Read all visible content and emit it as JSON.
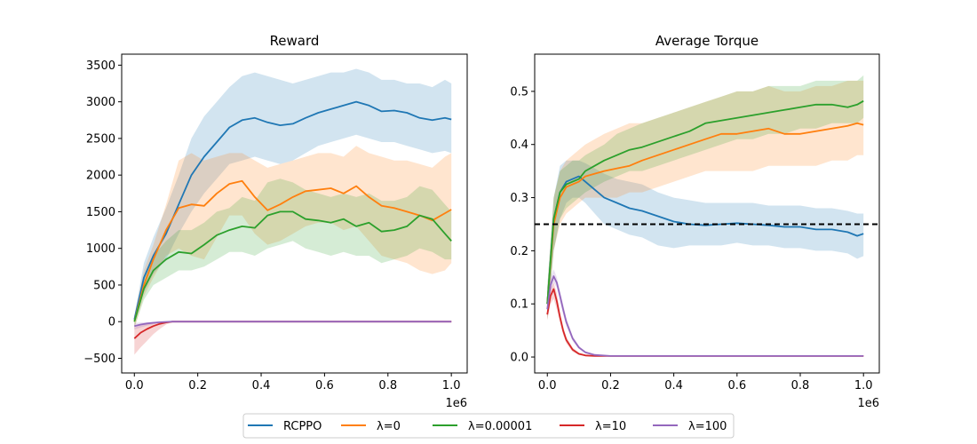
{
  "chart_data": [
    {
      "type": "line",
      "title": "Reward",
      "xlabel": "",
      "ylabel": "",
      "x_scale_label": "1e6",
      "xlim": [
        -0.04,
        1.05
      ],
      "ylim": [
        -700,
        3650
      ],
      "xticks": [
        0,
        0.2,
        0.4,
        0.6,
        0.8,
        1.0
      ],
      "xtick_labels": [
        "0.0",
        "0.2",
        "0.4",
        "0.6",
        "0.8",
        "1.0"
      ],
      "yticks": [
        -500,
        0,
        500,
        1000,
        1500,
        2000,
        2500,
        3000,
        3500
      ],
      "ytick_labels": [
        "−500",
        "0",
        "500",
        "1000",
        "1500",
        "2000",
        "2500",
        "3000",
        "3500"
      ],
      "grid": false,
      "series": [
        {
          "name": "RCPPO",
          "x": [
            0,
            0.03,
            0.06,
            0.1,
            0.14,
            0.18,
            0.22,
            0.26,
            0.3,
            0.34,
            0.38,
            0.42,
            0.46,
            0.5,
            0.54,
            0.58,
            0.62,
            0.66,
            0.7,
            0.74,
            0.78,
            0.82,
            0.86,
            0.9,
            0.94,
            0.98,
            1.0
          ],
          "values": [
            30,
            600,
            900,
            1200,
            1600,
            2000,
            2250,
            2450,
            2650,
            2750,
            2780,
            2720,
            2680,
            2700,
            2780,
            2850,
            2900,
            2950,
            3000,
            2950,
            2870,
            2880,
            2850,
            2780,
            2750,
            2780,
            2760
          ],
          "lower": [
            0,
            400,
            650,
            850,
            1200,
            1500,
            1750,
            1950,
            2150,
            2200,
            2250,
            2200,
            2150,
            2200,
            2300,
            2400,
            2450,
            2500,
            2550,
            2500,
            2450,
            2450,
            2400,
            2350,
            2300,
            2330,
            2300
          ],
          "upper": [
            80,
            800,
            1150,
            1550,
            2000,
            2500,
            2800,
            3000,
            3200,
            3350,
            3400,
            3350,
            3300,
            3250,
            3300,
            3350,
            3400,
            3400,
            3450,
            3400,
            3300,
            3300,
            3250,
            3250,
            3200,
            3300,
            3250
          ]
        },
        {
          "name": "λ=0",
          "x": [
            0,
            0.03,
            0.06,
            0.1,
            0.14,
            0.18,
            0.22,
            0.26,
            0.3,
            0.34,
            0.38,
            0.42,
            0.46,
            0.5,
            0.54,
            0.58,
            0.62,
            0.66,
            0.7,
            0.74,
            0.78,
            0.82,
            0.86,
            0.9,
            0.94,
            0.98,
            1.0
          ],
          "values": [
            0,
            500,
            850,
            1250,
            1550,
            1600,
            1580,
            1750,
            1880,
            1920,
            1700,
            1520,
            1600,
            1700,
            1780,
            1800,
            1820,
            1750,
            1850,
            1700,
            1580,
            1550,
            1500,
            1450,
            1380,
            1480,
            1530
          ],
          "lower": [
            -100,
            350,
            600,
            900,
            1000,
            900,
            850,
            1150,
            1450,
            1450,
            1200,
            1050,
            1100,
            1200,
            1300,
            1350,
            1350,
            1250,
            1300,
            1100,
            900,
            850,
            800,
            700,
            650,
            700,
            800
          ],
          "upper": [
            80,
            700,
            1050,
            1600,
            2200,
            2300,
            2200,
            2250,
            2300,
            2300,
            2200,
            2100,
            2150,
            2200,
            2250,
            2300,
            2300,
            2250,
            2400,
            2300,
            2250,
            2200,
            2200,
            2150,
            2100,
            2250,
            2300
          ]
        },
        {
          "name": "λ=0.00001",
          "x": [
            0,
            0.03,
            0.06,
            0.1,
            0.14,
            0.18,
            0.22,
            0.26,
            0.3,
            0.34,
            0.38,
            0.42,
            0.46,
            0.5,
            0.54,
            0.58,
            0.62,
            0.66,
            0.7,
            0.74,
            0.78,
            0.82,
            0.86,
            0.9,
            0.94,
            0.98,
            1.0
          ],
          "values": [
            0,
            450,
            700,
            850,
            950,
            930,
            1050,
            1180,
            1250,
            1300,
            1280,
            1450,
            1500,
            1500,
            1400,
            1380,
            1350,
            1400,
            1300,
            1350,
            1230,
            1250,
            1300,
            1450,
            1400,
            1200,
            1100
          ],
          "lower": [
            -80,
            300,
            500,
            600,
            700,
            700,
            750,
            850,
            950,
            950,
            900,
            1000,
            1050,
            1100,
            1000,
            950,
            900,
            950,
            900,
            900,
            800,
            850,
            900,
            1000,
            950,
            850,
            850
          ],
          "upper": [
            80,
            600,
            900,
            1100,
            1250,
            1250,
            1350,
            1500,
            1550,
            1700,
            1650,
            1900,
            1950,
            1900,
            1800,
            1750,
            1700,
            1750,
            1700,
            1750,
            1650,
            1650,
            1700,
            1850,
            1800,
            1600,
            1500
          ]
        },
        {
          "name": "λ=10",
          "x": [
            0,
            0.02,
            0.04,
            0.06,
            0.08,
            0.1,
            0.12,
            0.2,
            0.4,
            0.6,
            0.8,
            1.0
          ],
          "values": [
            -230,
            -150,
            -100,
            -60,
            -30,
            -10,
            0,
            0,
            0,
            0,
            0,
            0
          ],
          "lower": [
            -450,
            -350,
            -260,
            -170,
            -100,
            -40,
            -5,
            0,
            0,
            0,
            0,
            0
          ],
          "upper": [
            -80,
            -50,
            -30,
            -15,
            -5,
            0,
            3,
            2,
            2,
            2,
            2,
            2
          ]
        },
        {
          "name": "λ=100",
          "x": [
            0,
            0.02,
            0.04,
            0.06,
            0.08,
            0.1,
            0.12,
            0.2,
            0.4,
            0.6,
            0.8,
            1.0
          ],
          "values": [
            -60,
            -40,
            -25,
            -15,
            -8,
            -3,
            0,
            0,
            0,
            0,
            0,
            0
          ],
          "lower": [
            -110,
            -80,
            -55,
            -35,
            -20,
            -8,
            -2,
            0,
            0,
            0,
            0,
            0
          ],
          "upper": [
            -20,
            -10,
            -5,
            -2,
            0,
            1,
            2,
            2,
            2,
            2,
            2,
            2
          ]
        }
      ]
    },
    {
      "type": "line",
      "title": "Average Torque",
      "xlabel": "",
      "ylabel": "",
      "x_scale_label": "1e6",
      "xlim": [
        -0.04,
        1.05
      ],
      "ylim": [
        -0.03,
        0.57
      ],
      "xticks": [
        0,
        0.2,
        0.4,
        0.6,
        0.8,
        1.0
      ],
      "xtick_labels": [
        "0.0",
        "0.2",
        "0.4",
        "0.6",
        "0.8",
        "1.0"
      ],
      "yticks": [
        0,
        0.1,
        0.2,
        0.3,
        0.4,
        0.5
      ],
      "ytick_labels": [
        "0.0",
        "0.1",
        "0.2",
        "0.3",
        "0.4",
        "0.5"
      ],
      "grid": false,
      "reference_line": {
        "y": 0.25,
        "style": "dashed",
        "color": "#000000"
      },
      "series": [
        {
          "name": "RCPPO",
          "x": [
            0,
            0.02,
            0.04,
            0.06,
            0.08,
            0.1,
            0.12,
            0.15,
            0.18,
            0.22,
            0.26,
            0.3,
            0.35,
            0.4,
            0.45,
            0.5,
            0.55,
            0.6,
            0.65,
            0.7,
            0.75,
            0.8,
            0.85,
            0.9,
            0.95,
            0.98,
            1.0
          ],
          "values": [
            0.1,
            0.26,
            0.31,
            0.33,
            0.335,
            0.34,
            0.33,
            0.315,
            0.3,
            0.29,
            0.28,
            0.275,
            0.265,
            0.255,
            0.25,
            0.248,
            0.25,
            0.252,
            0.25,
            0.248,
            0.245,
            0.245,
            0.24,
            0.24,
            0.235,
            0.228,
            0.232
          ],
          "lower": [
            0.07,
            0.2,
            0.26,
            0.29,
            0.3,
            0.3,
            0.29,
            0.27,
            0.25,
            0.24,
            0.23,
            0.225,
            0.21,
            0.205,
            0.21,
            0.21,
            0.21,
            0.215,
            0.21,
            0.21,
            0.205,
            0.205,
            0.2,
            0.2,
            0.195,
            0.185,
            0.19
          ],
          "upper": [
            0.13,
            0.3,
            0.36,
            0.37,
            0.37,
            0.37,
            0.365,
            0.355,
            0.345,
            0.335,
            0.33,
            0.325,
            0.31,
            0.3,
            0.295,
            0.29,
            0.29,
            0.29,
            0.29,
            0.285,
            0.285,
            0.285,
            0.28,
            0.28,
            0.275,
            0.27,
            0.27
          ]
        },
        {
          "name": "λ=0",
          "x": [
            0,
            0.02,
            0.04,
            0.06,
            0.08,
            0.1,
            0.12,
            0.15,
            0.18,
            0.22,
            0.26,
            0.3,
            0.35,
            0.4,
            0.45,
            0.5,
            0.55,
            0.6,
            0.65,
            0.7,
            0.75,
            0.8,
            0.85,
            0.9,
            0.95,
            0.98,
            1.0
          ],
          "values": [
            0.1,
            0.25,
            0.3,
            0.32,
            0.325,
            0.33,
            0.34,
            0.345,
            0.35,
            0.355,
            0.36,
            0.37,
            0.38,
            0.39,
            0.4,
            0.41,
            0.42,
            0.42,
            0.425,
            0.43,
            0.42,
            0.42,
            0.425,
            0.43,
            0.435,
            0.44,
            0.437
          ],
          "lower": [
            0.07,
            0.2,
            0.25,
            0.27,
            0.28,
            0.29,
            0.3,
            0.3,
            0.3,
            0.3,
            0.31,
            0.31,
            0.32,
            0.33,
            0.34,
            0.35,
            0.35,
            0.35,
            0.35,
            0.36,
            0.36,
            0.36,
            0.36,
            0.37,
            0.37,
            0.38,
            0.38
          ],
          "upper": [
            0.13,
            0.3,
            0.35,
            0.37,
            0.38,
            0.39,
            0.4,
            0.41,
            0.42,
            0.43,
            0.44,
            0.44,
            0.45,
            0.46,
            0.47,
            0.48,
            0.49,
            0.5,
            0.5,
            0.51,
            0.5,
            0.5,
            0.51,
            0.51,
            0.52,
            0.52,
            0.52
          ]
        },
        {
          "name": "λ=0.00001",
          "x": [
            0,
            0.02,
            0.04,
            0.06,
            0.08,
            0.1,
            0.12,
            0.15,
            0.18,
            0.22,
            0.26,
            0.3,
            0.35,
            0.4,
            0.45,
            0.5,
            0.55,
            0.6,
            0.65,
            0.7,
            0.75,
            0.8,
            0.85,
            0.9,
            0.95,
            0.98,
            1.0
          ],
          "values": [
            0.1,
            0.26,
            0.31,
            0.325,
            0.33,
            0.335,
            0.35,
            0.36,
            0.37,
            0.38,
            0.39,
            0.395,
            0.405,
            0.415,
            0.425,
            0.44,
            0.445,
            0.45,
            0.455,
            0.46,
            0.465,
            0.47,
            0.475,
            0.475,
            0.47,
            0.475,
            0.482
          ],
          "lower": [
            0.07,
            0.2,
            0.26,
            0.28,
            0.29,
            0.3,
            0.31,
            0.32,
            0.33,
            0.34,
            0.35,
            0.35,
            0.36,
            0.37,
            0.38,
            0.39,
            0.4,
            0.41,
            0.41,
            0.42,
            0.42,
            0.43,
            0.43,
            0.44,
            0.44,
            0.44,
            0.45
          ],
          "upper": [
            0.13,
            0.3,
            0.35,
            0.36,
            0.37,
            0.37,
            0.38,
            0.39,
            0.4,
            0.42,
            0.43,
            0.44,
            0.45,
            0.46,
            0.47,
            0.48,
            0.49,
            0.5,
            0.5,
            0.51,
            0.51,
            0.51,
            0.52,
            0.52,
            0.52,
            0.52,
            0.53
          ]
        },
        {
          "name": "λ=10",
          "x": [
            0,
            0.01,
            0.02,
            0.03,
            0.04,
            0.05,
            0.06,
            0.08,
            0.1,
            0.12,
            0.15,
            0.2,
            0.4,
            0.6,
            0.8,
            1.0
          ],
          "values": [
            0.08,
            0.115,
            0.128,
            0.105,
            0.075,
            0.05,
            0.032,
            0.014,
            0.006,
            0.003,
            0.002,
            0.002,
            0.002,
            0.002,
            0.002,
            0.002
          ],
          "lower": [
            0.07,
            0.1,
            0.11,
            0.09,
            0.065,
            0.042,
            0.026,
            0.01,
            0.004,
            0.002,
            0.001,
            0.001,
            0.001,
            0.001,
            0.001,
            0.001
          ],
          "upper": [
            0.09,
            0.13,
            0.14,
            0.12,
            0.085,
            0.058,
            0.038,
            0.018,
            0.008,
            0.005,
            0.003,
            0.003,
            0.003,
            0.003,
            0.003,
            0.003
          ]
        },
        {
          "name": "λ=100",
          "x": [
            0,
            0.01,
            0.02,
            0.03,
            0.04,
            0.05,
            0.06,
            0.08,
            0.1,
            0.12,
            0.15,
            0.2,
            0.4,
            0.6,
            0.8,
            1.0
          ],
          "values": [
            0.09,
            0.135,
            0.152,
            0.14,
            0.115,
            0.09,
            0.066,
            0.035,
            0.018,
            0.009,
            0.004,
            0.002,
            0.002,
            0.002,
            0.002,
            0.002
          ],
          "lower": [
            0.08,
            0.12,
            0.14,
            0.13,
            0.105,
            0.08,
            0.058,
            0.03,
            0.015,
            0.007,
            0.003,
            0.001,
            0.001,
            0.001,
            0.001,
            0.001
          ],
          "upper": [
            0.1,
            0.15,
            0.165,
            0.15,
            0.125,
            0.1,
            0.074,
            0.04,
            0.021,
            0.011,
            0.005,
            0.003,
            0.003,
            0.003,
            0.003,
            0.003
          ]
        }
      ]
    }
  ],
  "colors": {
    "RCPPO": "#1f77b4",
    "λ=0": "#ff7f0e",
    "λ=0.00001": "#2ca02c",
    "λ=10": "#d62728",
    "λ=100": "#9467bd"
  },
  "legend": {
    "placement": "bottom-center",
    "entries": [
      "RCPPO",
      "λ=0",
      "λ=0.00001",
      "λ=10",
      "λ=100"
    ]
  }
}
